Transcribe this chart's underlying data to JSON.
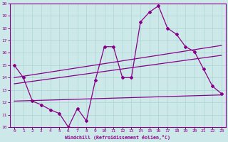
{
  "xlabel": "Windchill (Refroidissement éolien,°C)",
  "xlim": [
    -0.5,
    23.5
  ],
  "ylim": [
    10,
    20
  ],
  "xticks": [
    0,
    1,
    2,
    3,
    4,
    5,
    6,
    7,
    8,
    9,
    10,
    11,
    12,
    13,
    14,
    15,
    16,
    17,
    18,
    19,
    20,
    21,
    22,
    23
  ],
  "yticks": [
    10,
    11,
    12,
    13,
    14,
    15,
    16,
    17,
    18,
    19,
    20
  ],
  "bg_color": "#cde8e8",
  "line_color": "#880088",
  "grid_color": "#aad4d4",
  "main_x": [
    0,
    1,
    2,
    3,
    4,
    5,
    6,
    7,
    8,
    9,
    10,
    11,
    12,
    13,
    14,
    15,
    16,
    17,
    18,
    19,
    20,
    21,
    22,
    23
  ],
  "main_y": [
    15.0,
    14.0,
    12.1,
    11.8,
    11.4,
    11.1,
    10.0,
    11.5,
    10.5,
    13.8,
    16.5,
    16.5,
    14.0,
    14.0,
    18.5,
    19.3,
    19.8,
    18.0,
    17.5,
    16.5,
    16.1,
    14.7,
    13.3,
    12.7
  ],
  "trend1_x": [
    0,
    23
  ],
  "trend1_y": [
    14.0,
    16.6
  ],
  "trend2_x": [
    0,
    23
  ],
  "trend2_y": [
    13.5,
    15.8
  ],
  "trend3_x": [
    0,
    23
  ],
  "trend3_y": [
    12.1,
    12.6
  ]
}
